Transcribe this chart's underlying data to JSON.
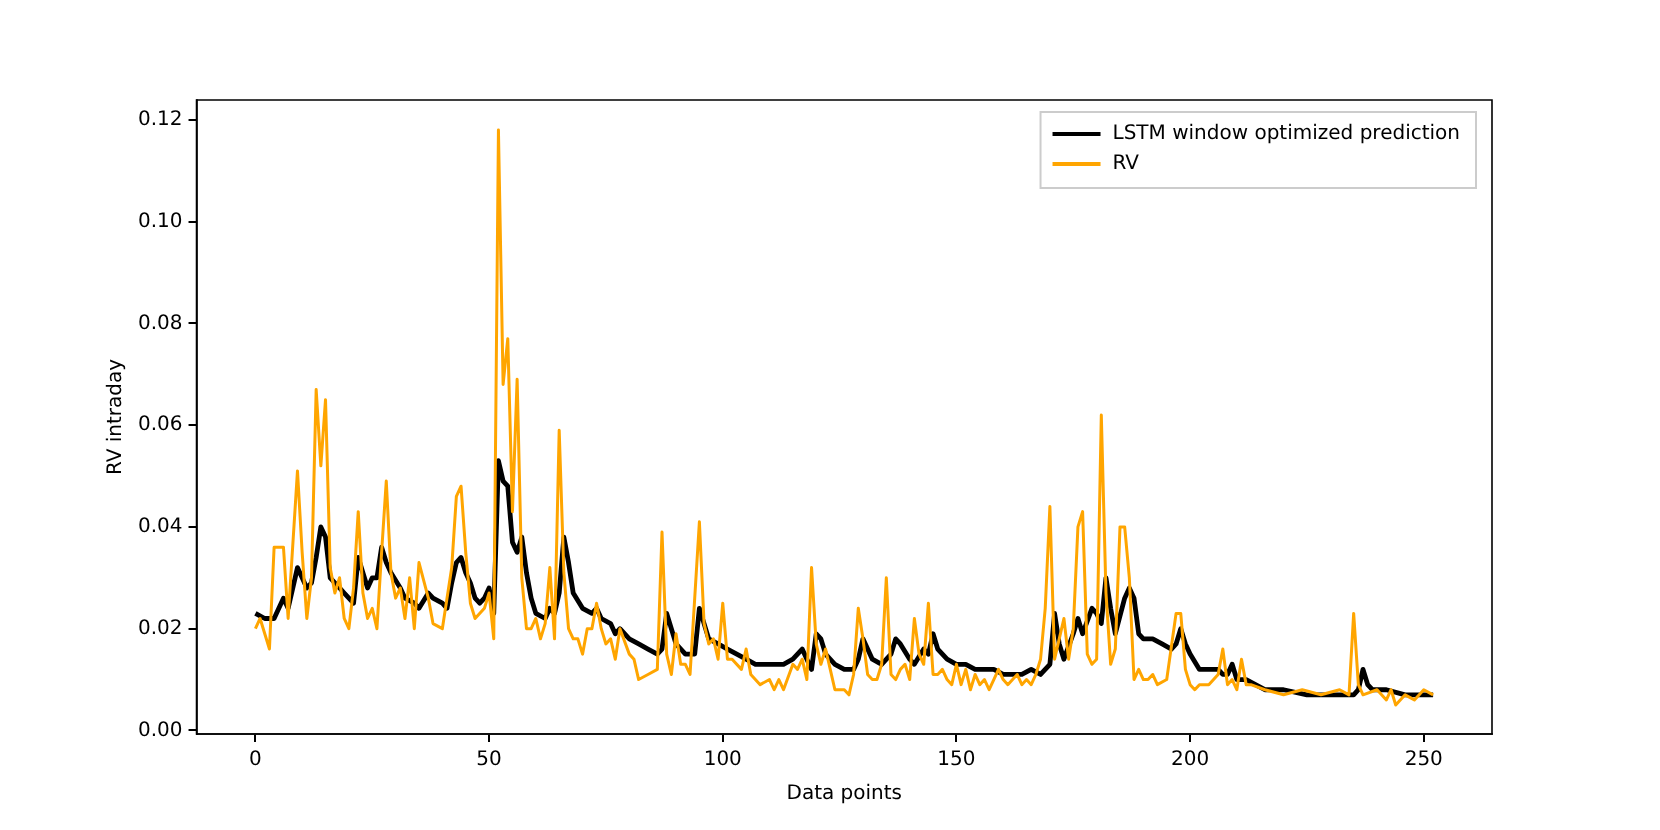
{
  "chart_data": {
    "type": "line",
    "xlabel": "Data points",
    "ylabel": "RV intraday",
    "xlim": [
      -12.6,
      264.6
    ],
    "ylim": [
      -0.0007,
      0.1239
    ],
    "xticks": [
      0,
      50,
      100,
      150,
      200,
      250
    ],
    "yticks": [
      {
        "value": 0,
        "label": "0.00"
      },
      {
        "value": 0.02,
        "label": "0.02"
      },
      {
        "value": 0.04,
        "label": "0.04"
      },
      {
        "value": 0.06,
        "label": "0.06"
      },
      {
        "value": 0.08,
        "label": "0.08"
      },
      {
        "value": 0.1,
        "label": "0.10"
      },
      {
        "value": 0.12,
        "label": "0.12"
      }
    ],
    "grid": false,
    "legend": "top right",
    "marker": "none",
    "line_style": "solid",
    "series": [
      {
        "name": "LSTM window optimized prediction",
        "color": "#000000",
        "x": [
          0,
          2,
          4,
          6,
          7,
          9,
          11,
          12,
          13,
          14,
          15,
          16,
          18,
          19,
          21,
          22,
          24,
          25,
          26,
          27,
          28,
          29,
          31,
          32,
          34,
          35,
          37,
          38,
          40,
          41,
          42,
          43,
          44,
          45,
          46,
          47,
          48,
          49,
          50,
          51,
          52,
          53,
          54,
          55,
          56,
          57,
          58,
          59,
          60,
          62,
          63,
          64,
          65,
          66,
          67,
          68,
          70,
          72,
          73,
          74,
          76,
          77,
          78,
          80,
          82,
          84,
          86,
          87,
          88,
          90,
          92,
          94,
          95,
          96,
          97,
          99,
          101,
          103,
          105,
          107,
          109,
          111,
          113,
          115,
          117,
          118,
          119,
          120,
          121,
          122,
          124,
          126,
          128,
          129,
          130,
          131,
          132,
          134,
          136,
          137,
          138,
          140,
          141,
          143,
          144,
          145,
          146,
          148,
          150,
          152,
          154,
          156,
          158,
          160,
          162,
          164,
          166,
          168,
          170,
          171,
          172,
          173,
          175,
          176,
          177,
          179,
          180,
          181,
          182,
          183,
          184,
          186,
          187,
          188,
          189,
          190,
          192,
          194,
          196,
          197,
          198,
          199,
          200,
          202,
          204,
          206,
          207,
          208,
          209,
          210,
          212,
          214,
          216,
          220,
          225,
          230,
          235,
          236,
          237,
          238,
          239,
          242,
          246,
          250,
          252
        ],
        "values": [
          0.023,
          0.022,
          0.022,
          0.026,
          0.024,
          0.032,
          0.028,
          0.029,
          0.034,
          0.04,
          0.038,
          0.03,
          0.028,
          0.027,
          0.025,
          0.034,
          0.028,
          0.03,
          0.03,
          0.036,
          0.033,
          0.031,
          0.028,
          0.026,
          0.025,
          0.024,
          0.027,
          0.026,
          0.025,
          0.024,
          0.029,
          0.033,
          0.034,
          0.031,
          0.029,
          0.026,
          0.025,
          0.026,
          0.028,
          0.023,
          0.053,
          0.049,
          0.048,
          0.037,
          0.035,
          0.038,
          0.031,
          0.026,
          0.023,
          0.022,
          0.024,
          0.023,
          0.027,
          0.038,
          0.033,
          0.027,
          0.024,
          0.023,
          0.024,
          0.022,
          0.021,
          0.019,
          0.02,
          0.018,
          0.017,
          0.016,
          0.015,
          0.016,
          0.023,
          0.017,
          0.015,
          0.015,
          0.024,
          0.021,
          0.018,
          0.017,
          0.016,
          0.015,
          0.014,
          0.013,
          0.013,
          0.013,
          0.013,
          0.014,
          0.016,
          0.014,
          0.012,
          0.019,
          0.018,
          0.015,
          0.013,
          0.012,
          0.012,
          0.014,
          0.018,
          0.016,
          0.014,
          0.013,
          0.015,
          0.018,
          0.017,
          0.014,
          0.013,
          0.016,
          0.015,
          0.019,
          0.016,
          0.014,
          0.013,
          0.013,
          0.012,
          0.012,
          0.012,
          0.011,
          0.011,
          0.011,
          0.012,
          0.011,
          0.013,
          0.023,
          0.017,
          0.014,
          0.019,
          0.022,
          0.019,
          0.024,
          0.023,
          0.021,
          0.03,
          0.024,
          0.019,
          0.026,
          0.028,
          0.026,
          0.019,
          0.018,
          0.018,
          0.017,
          0.016,
          0.017,
          0.02,
          0.017,
          0.015,
          0.012,
          0.012,
          0.012,
          0.011,
          0.011,
          0.013,
          0.01,
          0.01,
          0.009,
          0.008,
          0.008,
          0.007,
          0.007,
          0.007,
          0.008,
          0.012,
          0.009,
          0.008,
          0.008,
          0.007,
          0.007,
          0.007
        ]
      },
      {
        "name": "RV",
        "color": "#ffa500",
        "x": [
          0,
          1,
          2,
          3,
          4,
          6,
          7,
          9,
          10,
          11,
          12,
          13,
          14,
          15,
          16,
          17,
          18,
          19,
          20,
          21,
          22,
          23,
          24,
          25,
          26,
          27,
          28,
          29,
          30,
          31,
          32,
          33,
          34,
          35,
          37,
          38,
          40,
          42,
          43,
          44,
          45,
          46,
          47,
          49,
          50,
          51,
          52,
          53,
          54,
          55,
          56,
          57,
          58,
          59,
          60,
          61,
          62,
          63,
          64,
          65,
          66,
          67,
          68,
          69,
          70,
          71,
          72,
          73,
          74,
          75,
          76,
          77,
          78,
          80,
          81,
          82,
          84,
          86,
          87,
          88,
          89,
          90,
          91,
          92,
          93,
          94,
          95,
          96,
          97,
          98,
          99,
          100,
          101,
          102,
          104,
          105,
          106,
          108,
          110,
          111,
          112,
          113,
          115,
          116,
          117,
          118,
          119,
          120,
          121,
          122,
          123,
          124,
          126,
          127,
          128,
          129,
          130,
          131,
          132,
          133,
          134,
          135,
          136,
          137,
          138,
          139,
          140,
          141,
          142,
          143,
          144,
          145,
          146,
          147,
          148,
          149,
          150,
          151,
          152,
          153,
          154,
          155,
          156,
          157,
          158,
          159,
          160,
          161,
          163,
          164,
          165,
          166,
          167,
          168,
          169,
          170,
          171,
          172,
          173,
          174,
          175,
          176,
          177,
          178,
          179,
          180,
          181,
          182,
          183,
          184,
          185,
          186,
          187,
          188,
          189,
          190,
          191,
          192,
          193,
          195,
          197,
          198,
          199,
          200,
          201,
          202,
          204,
          206,
          207,
          208,
          209,
          210,
          211,
          212,
          213,
          216,
          220,
          224,
          228,
          232,
          234,
          235,
          236,
          237,
          240,
          242,
          243,
          244,
          246,
          248,
          250,
          252
        ],
        "values": [
          0.02,
          0.022,
          0.019,
          0.016,
          0.036,
          0.036,
          0.022,
          0.051,
          0.035,
          0.022,
          0.03,
          0.067,
          0.052,
          0.065,
          0.032,
          0.027,
          0.03,
          0.022,
          0.02,
          0.028,
          0.043,
          0.027,
          0.022,
          0.024,
          0.02,
          0.035,
          0.049,
          0.031,
          0.026,
          0.028,
          0.022,
          0.03,
          0.02,
          0.033,
          0.026,
          0.021,
          0.02,
          0.032,
          0.046,
          0.048,
          0.035,
          0.025,
          0.022,
          0.024,
          0.027,
          0.018,
          0.118,
          0.068,
          0.077,
          0.043,
          0.069,
          0.03,
          0.02,
          0.02,
          0.022,
          0.018,
          0.021,
          0.032,
          0.018,
          0.059,
          0.031,
          0.02,
          0.018,
          0.018,
          0.015,
          0.02,
          0.02,
          0.025,
          0.02,
          0.017,
          0.018,
          0.014,
          0.02,
          0.015,
          0.014,
          0.01,
          0.011,
          0.012,
          0.039,
          0.015,
          0.011,
          0.019,
          0.013,
          0.013,
          0.011,
          0.026,
          0.041,
          0.021,
          0.017,
          0.018,
          0.014,
          0.025,
          0.014,
          0.014,
          0.012,
          0.016,
          0.011,
          0.009,
          0.01,
          0.008,
          0.01,
          0.008,
          0.013,
          0.012,
          0.014,
          0.01,
          0.032,
          0.017,
          0.013,
          0.016,
          0.012,
          0.008,
          0.008,
          0.007,
          0.011,
          0.024,
          0.018,
          0.011,
          0.01,
          0.01,
          0.013,
          0.03,
          0.011,
          0.01,
          0.012,
          0.013,
          0.01,
          0.022,
          0.015,
          0.013,
          0.025,
          0.011,
          0.011,
          0.012,
          0.01,
          0.009,
          0.013,
          0.009,
          0.012,
          0.008,
          0.011,
          0.009,
          0.01,
          0.008,
          0.01,
          0.012,
          0.01,
          0.009,
          0.011,
          0.009,
          0.01,
          0.009,
          0.011,
          0.014,
          0.024,
          0.044,
          0.014,
          0.018,
          0.022,
          0.014,
          0.02,
          0.04,
          0.043,
          0.015,
          0.013,
          0.014,
          0.062,
          0.027,
          0.013,
          0.016,
          0.04,
          0.04,
          0.03,
          0.01,
          0.012,
          0.01,
          0.01,
          0.011,
          0.009,
          0.01,
          0.023,
          0.023,
          0.012,
          0.009,
          0.008,
          0.009,
          0.009,
          0.011,
          0.016,
          0.009,
          0.01,
          0.008,
          0.014,
          0.009,
          0.009,
          0.008,
          0.007,
          0.008,
          0.007,
          0.008,
          0.007,
          0.023,
          0.009,
          0.007,
          0.008,
          0.006,
          0.008,
          0.005,
          0.007,
          0.006,
          0.008,
          0.007
        ]
      }
    ]
  }
}
